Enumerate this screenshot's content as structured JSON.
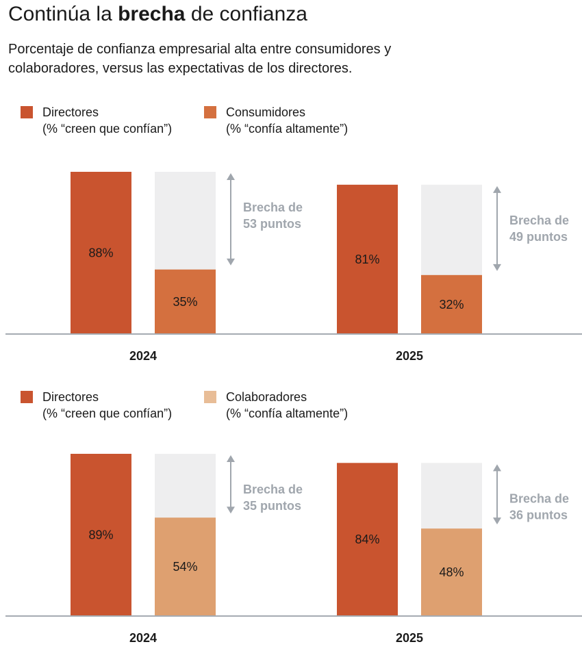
{
  "title": {
    "prefix": "Continúa la ",
    "bold": "brecha",
    "suffix": " de confianza"
  },
  "subtitle": "Porcentaje de confianza empresarial alta entre consumidores y colaboradores, versus las expectativas de los directores.",
  "colors": {
    "directors": "#c9542f",
    "consumers": "#d4703f",
    "employees": "#dea070",
    "background_bar": "#eeeeef",
    "axis": "#a5abb2",
    "gap": "#a0a6ad"
  },
  "chart_data": [
    {
      "type": "bar",
      "legend": [
        {
          "name": "Directores",
          "note": "(% “creen que confían”)"
        },
        {
          "name": "Consumidores",
          "note": "(% “confía altamente”)"
        }
      ],
      "groups": [
        {
          "year": "2024",
          "directors": 88,
          "directors_label": "88%",
          "others": 35,
          "others_label": "35%",
          "gap_line1": "Brecha de",
          "gap_line2": "53 puntos"
        },
        {
          "year": "2025",
          "directors": 81,
          "directors_label": "81%",
          "others": 32,
          "others_label": "32%",
          "gap_line1": "Brecha de",
          "gap_line2": "49 puntos"
        }
      ]
    },
    {
      "type": "bar",
      "legend": [
        {
          "name": "Directores",
          "note": "(% “creen que confían”)"
        },
        {
          "name": "Colaboradores",
          "note": "(% “confía altamente”)"
        }
      ],
      "groups": [
        {
          "year": "2024",
          "directors": 89,
          "directors_label": "89%",
          "others": 54,
          "others_label": "54%",
          "gap_line1": "Brecha de",
          "gap_line2": "35 puntos"
        },
        {
          "year": "2025",
          "directors": 84,
          "directors_label": "84%",
          "others": 48,
          "others_label": "48%",
          "gap_line1": "Brecha de",
          "gap_line2": "36 puntos"
        }
      ]
    }
  ]
}
